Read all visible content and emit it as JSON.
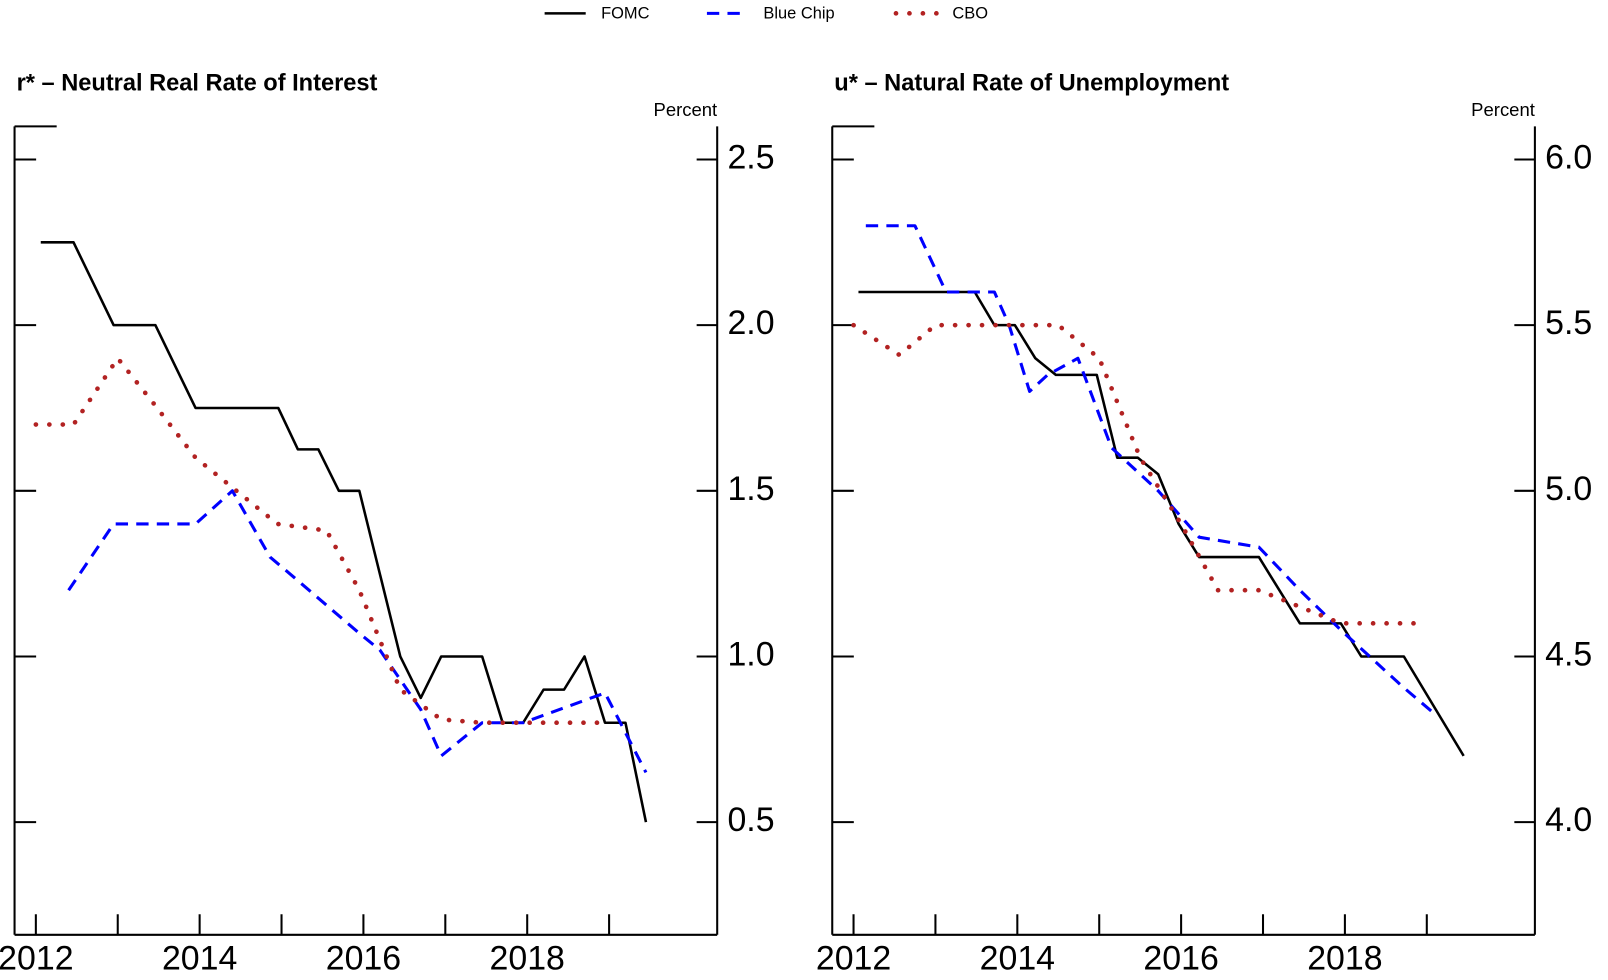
{
  "legend_position": "top",
  "chart_data": [
    {
      "type": "line",
      "title": "r* – Neutral Real Rate of Interest",
      "y_unit_label": "Percent",
      "xlim": [
        2011.74,
        2020.32
      ],
      "xticks": [
        2012,
        2014,
        2016,
        2018
      ],
      "xminor_ticks": [
        2013,
        2015,
        2017,
        2019
      ],
      "ylim": [
        0.16,
        2.6
      ],
      "yticks": [
        0.5,
        {
          "value": 1,
          "label": "1.0"
        },
        1.5,
        {
          "value": 2,
          "label": "2.0"
        },
        2.5
      ],
      "series": [
        {
          "name": "FOMC",
          "color": "#000000",
          "line_style": "solid",
          "x": [
            2012.06,
            2012.46,
            2012.95,
            2013.46,
            2013.95,
            2014.96,
            2015.2,
            2015.45,
            2015.7,
            2015.95,
            2016.45,
            2016.7,
            2016.95,
            2017.45,
            2017.7,
            2017.95,
            2018.2,
            2018.45,
            2018.7,
            2018.95,
            2019.2,
            2019.45
          ],
          "values": [
            2.25,
            2.25,
            2.0,
            2.0,
            1.75,
            1.75,
            1.625,
            1.625,
            1.5,
            1.5,
            1.0,
            0.875,
            1.0,
            1.0,
            0.8,
            0.8,
            0.9,
            0.9,
            1.0,
            0.8,
            0.8,
            0.5
          ]
        },
        {
          "name": "Blue Chip",
          "color": "#0000ff",
          "line_style": "dashed",
          "x": [
            2012.4,
            2012.95,
            2013.95,
            2014.4,
            2014.86,
            2015.1,
            2015.95,
            2016.2,
            2016.7,
            2016.95,
            2017.45,
            2017.95,
            2018.95,
            2019.45
          ],
          "values": [
            1.2,
            1.4,
            1.4,
            1.5,
            1.3,
            1.25,
            1.07,
            1.02,
            0.84,
            0.7,
            0.8,
            0.8,
            0.89,
            0.65
          ]
        },
        {
          "name": "CBO",
          "color": "#b22222",
          "line_style": "dotted",
          "x": [
            2012.0,
            2012.46,
            2013.0,
            2013.45,
            2013.95,
            2014.45,
            2014.95,
            2015.55,
            2015.95,
            2016.45,
            2016.95,
            2017.45,
            2019.0
          ],
          "values": [
            1.7,
            1.7,
            1.9,
            1.76,
            1.6,
            1.5,
            1.4,
            1.38,
            1.2,
            0.9,
            0.81,
            0.8,
            0.8
          ]
        }
      ]
    },
    {
      "type": "line",
      "title": "u* – Natural Rate of Unemployment",
      "y_unit_label": "Percent",
      "xlim": [
        2011.74,
        2020.32
      ],
      "xticks": [
        2012,
        2014,
        2016,
        2018
      ],
      "xminor_ticks": [
        2013,
        2015,
        2017,
        2019
      ],
      "ylim": [
        3.66,
        6.1
      ],
      "yticks": [
        {
          "value": 4,
          "label": "4.0"
        },
        4.5,
        {
          "value": 5,
          "label": "5.0"
        },
        5.5,
        {
          "value": 6,
          "label": "6.0"
        }
      ],
      "series": [
        {
          "color": "#000000",
          "line_style": "solid",
          "x": [
            2012.06,
            2013.48,
            2013.72,
            2013.97,
            2014.22,
            2014.47,
            2014.97,
            2015.22,
            2015.47,
            2015.72,
            2015.97,
            2016.22,
            2016.95,
            2017.45,
            2017.95,
            2018.2,
            2018.72,
            2019.45
          ],
          "values": [
            5.6,
            5.6,
            5.5,
            5.5,
            5.4,
            5.35,
            5.35,
            5.1,
            5.1,
            5.05,
            4.9,
            4.8,
            4.8,
            4.6,
            4.6,
            4.5,
            4.5,
            4.2
          ]
        },
        {
          "color": "#0000ff",
          "line_style": "dashed",
          "x": [
            2012.15,
            2012.75,
            2013.13,
            2013.72,
            2013.9,
            2014.15,
            2014.37,
            2014.74,
            2015.15,
            2015.72,
            2016.22,
            2016.95,
            2017.45,
            2017.95,
            2018.7,
            2019.08
          ],
          "values": [
            5.8,
            5.8,
            5.6,
            5.6,
            5.5,
            5.3,
            5.35,
            5.4,
            5.13,
            5.0,
            4.86,
            4.83,
            4.7,
            4.58,
            4.41,
            4.33
          ]
        },
        {
          "color": "#b22222",
          "line_style": "dotted",
          "x": [
            2012.0,
            2012.56,
            2013.0,
            2014.5,
            2015.0,
            2015.5,
            2016.0,
            2016.45,
            2016.95,
            2017.95,
            2018.88
          ],
          "values": [
            5.5,
            5.41,
            5.5,
            5.5,
            5.4,
            5.1,
            4.9,
            4.7,
            4.7,
            4.6,
            4.6
          ]
        }
      ]
    }
  ]
}
